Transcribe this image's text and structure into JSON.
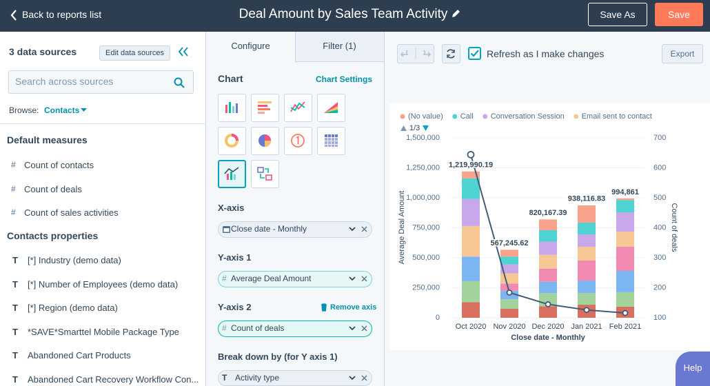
{
  "header": {
    "back": "Back to reports list",
    "title": "Deal Amount by Sales Team Activity",
    "save_as": "Save As",
    "save": "Save"
  },
  "sources": {
    "count_label": "3 data sources",
    "edit": "Edit data sources",
    "search_placeholder": "Search across sources",
    "browse_label": "Browse:",
    "browse_value": "Contacts"
  },
  "default_measures": {
    "heading": "Default measures",
    "items": [
      {
        "icon": "#",
        "label": "Count of contacts"
      },
      {
        "icon": "#",
        "label": "Count of deals"
      },
      {
        "icon": "#",
        "label": "Count of sales activities"
      }
    ]
  },
  "contacts_properties": {
    "heading": "Contacts properties",
    "items": [
      {
        "icon": "T",
        "label": "[*] Industry (demo data)"
      },
      {
        "icon": "T",
        "label": "[*] Number of Employees (demo data)"
      },
      {
        "icon": "T",
        "label": "[*] Region (demo data)"
      },
      {
        "icon": "T",
        "label": "*SAVE*Smarttel Mobile Package Type"
      },
      {
        "icon": "T",
        "label": "Abandoned Cart Products"
      },
      {
        "icon": "T",
        "label": "Abandoned Cart Recovery Workflow Con..."
      }
    ]
  },
  "config": {
    "tabs": [
      "Configure",
      "Filter (1)"
    ],
    "chart_heading": "Chart",
    "chart_settings": "Chart Settings",
    "x_axis": {
      "label": "X-axis",
      "field": "Close date - Monthly"
    },
    "y_axis_1": {
      "label": "Y-axis 1",
      "field_icon": "#",
      "field": "Average Deal Amount"
    },
    "y_axis_2": {
      "label": "Y-axis 2",
      "action": "Remove axis",
      "field_icon": "#",
      "field": "Count of deals"
    },
    "breakdown": {
      "label": "Break down by (for Y axis 1)",
      "field_icon": "T",
      "field": "Activity type"
    }
  },
  "toolbar": {
    "refresh_label": "Refresh as I make changes",
    "export": "Export"
  },
  "help": "Help",
  "chart_data": {
    "type": "bar",
    "stacked": true,
    "grid": true,
    "legend": "top-left",
    "legend_page": "1/3",
    "xlabel": "Close date - Monthly",
    "ylabel": "Average Deal Amount",
    "y2label": "Count of deals",
    "categories": [
      "Oct 2020",
      "Nov 2020",
      "Dec 2020",
      "Jan 2021",
      "Feb 2021"
    ],
    "ylim": [
      0,
      1500000
    ],
    "yticks": [
      0,
      {
        "value": 250000,
        "label": "250,000"
      },
      {
        "value": 500000,
        "label": "500,000"
      },
      {
        "value": 750000,
        "label": "750,000"
      },
      {
        "value": 1000000,
        "label": "1,000,000"
      },
      {
        "value": 1250000,
        "label": "1,250,000"
      },
      {
        "value": 1500000,
        "label": "1,500,000"
      }
    ],
    "y2lim": [
      100,
      700
    ],
    "y2ticks": [
      100,
      200,
      300,
      400,
      500,
      600,
      700
    ],
    "series": [
      {
        "color": "#d9705f",
        "values": [
          130000,
          75000,
          95000,
          109000,
          92000
        ]
      },
      {
        "color": "#a3d39c",
        "values": [
          175000,
          80000,
          110000,
          98000,
          121000
        ]
      },
      {
        "color": "#7cb6f2",
        "values": [
          205000,
          70000,
          95000,
          103000,
          178000
        ]
      },
      {
        "color": "#f08ab0",
        "values": [
          0,
          60000,
          110000,
          167000,
          201000
        ]
      },
      {
        "name": "Email sent to contact",
        "color": "#f7c896",
        "values": [
          255000,
          85000,
          115000,
          115000,
          126000
        ]
      },
      {
        "name": "Conversation Session",
        "color": "#c8a7ea",
        "values": [
          225000,
          75000,
          110000,
          103000,
          161000
        ]
      },
      {
        "name": "Call",
        "color": "#4fd2d2",
        "values": [
          172000,
          65000,
          95000,
          98000,
          103000
        ]
      },
      {
        "name": "(No value)",
        "color": "#f9a28b",
        "values": [
          58000,
          57000,
          90000,
          144000,
          13000
        ]
      },
      {
        "type": "line",
        "axis": "y2",
        "color": "#425b76",
        "values": [
          644,
          184,
          145,
          126,
          116
        ]
      }
    ],
    "totals": [
      1219990.19,
      567245.62,
      820167.39,
      938116.83,
      994861
    ],
    "total_labels": [
      "1,219,990.19",
      "567,245.62",
      "820,167.39",
      "938,116.83",
      "994,861"
    ]
  }
}
